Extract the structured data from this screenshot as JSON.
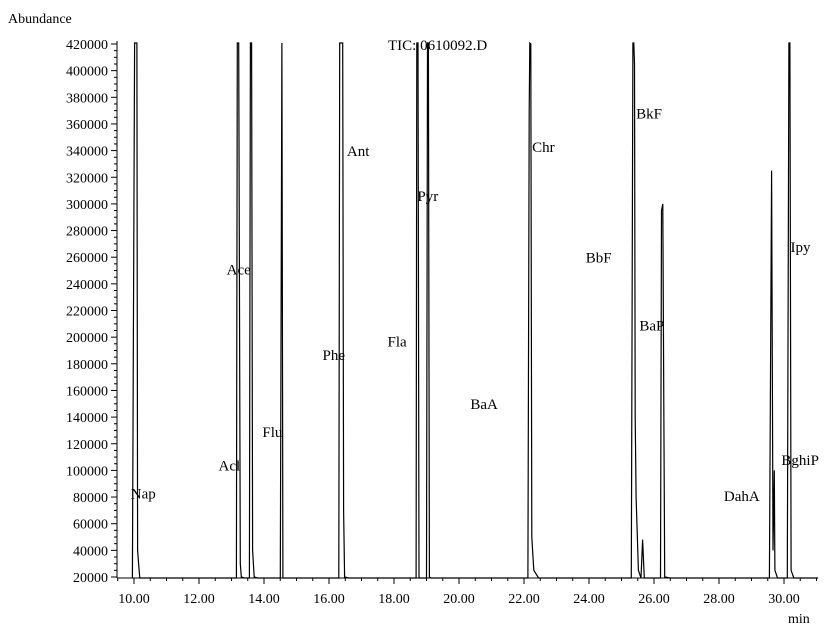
{
  "chart_data": {
    "type": "line",
    "title": "TIC: 0610092.D",
    "ylabel": "Abundance",
    "xlabel": "min",
    "xlim": [
      9.0,
      31.1
    ],
    "ylim": [
      6000,
      427000
    ],
    "x_ticks": [
      10.0,
      12.0,
      14.0,
      16.0,
      18.0,
      20.0,
      22.0,
      24.0,
      26.0,
      28.0,
      30.0
    ],
    "x_tick_labels": [
      "10.00",
      "12.00",
      "14.00",
      "16.00",
      "18.00",
      "20.00",
      "22.00",
      "24.00",
      "26.00",
      "28.00",
      "30.00"
    ],
    "y_ticks": [
      20000,
      40000,
      60000,
      80000,
      100000,
      120000,
      140000,
      160000,
      180000,
      200000,
      220000,
      240000,
      260000,
      280000,
      300000,
      320000,
      340000,
      360000,
      380000,
      400000,
      420000
    ],
    "y_tick_labels": [
      "20000",
      "40000",
      "60000",
      "80000",
      "100000",
      "120000",
      "140000",
      "160000",
      "180000",
      "200000",
      "220000",
      "240000",
      "260000",
      "280000",
      "300000",
      "320000",
      "340000",
      "360000",
      "380000",
      "400000",
      "420000"
    ],
    "grid": false,
    "series": [
      {
        "color": "#000000",
        "points": [
          [
            9.95,
            6000
          ],
          [
            10.02,
            430000
          ],
          [
            10.04,
            430000
          ],
          [
            10.07,
            430000
          ],
          [
            10.09,
            430000
          ],
          [
            10.11,
            40000
          ],
          [
            10.14,
            30000
          ],
          [
            10.18,
            8000
          ],
          [
            10.5,
            7000
          ],
          [
            11.5,
            7000
          ],
          [
            12.0,
            7000
          ],
          [
            12.1,
            8000
          ],
          [
            12.8,
            8000
          ],
          [
            13.0,
            8500
          ],
          [
            13.15,
            9000
          ],
          [
            13.18,
            430000
          ],
          [
            13.22,
            430000
          ],
          [
            13.27,
            30000
          ],
          [
            13.3,
            20000
          ],
          [
            13.4,
            15000
          ],
          [
            13.5,
            14000
          ],
          [
            13.55,
            15000
          ],
          [
            13.58,
            430000
          ],
          [
            13.62,
            430000
          ],
          [
            13.65,
            40000
          ],
          [
            13.7,
            20000
          ],
          [
            13.8,
            15000
          ],
          [
            14.0,
            13000
          ],
          [
            14.3,
            12000
          ],
          [
            14.45,
            11000
          ],
          [
            14.5,
            11000
          ],
          [
            14.55,
            430000
          ],
          [
            14.58,
            11000
          ],
          [
            14.8,
            10000
          ],
          [
            15.5,
            9500
          ],
          [
            16.2,
            9500
          ],
          [
            16.3,
            10000
          ],
          [
            16.33,
            430000
          ],
          [
            16.36,
            430000
          ],
          [
            16.39,
            430000
          ],
          [
            16.42,
            430000
          ],
          [
            16.45,
            70000
          ],
          [
            16.48,
            20000
          ],
          [
            16.6,
            12000
          ],
          [
            17.0,
            9000
          ],
          [
            17.5,
            9000
          ],
          [
            18.0,
            9000
          ],
          [
            18.5,
            9000
          ],
          [
            18.68,
            9500
          ],
          [
            18.7,
            430000
          ],
          [
            18.74,
            430000
          ],
          [
            18.77,
            15000
          ],
          [
            18.8,
            12000
          ],
          [
            18.95,
            12000
          ],
          [
            19.0,
            13000
          ],
          [
            19.03,
            430000
          ],
          [
            19.06,
            430000
          ],
          [
            19.09,
            20000
          ],
          [
            19.15,
            12000
          ],
          [
            19.5,
            9000
          ],
          [
            20.0,
            8500
          ],
          [
            20.5,
            8500
          ],
          [
            21.0,
            8500
          ],
          [
            21.1,
            14000
          ],
          [
            21.15,
            8500
          ],
          [
            21.5,
            8500
          ],
          [
            22.0,
            8500
          ],
          [
            22.12,
            9000
          ],
          [
            22.16,
            370000
          ],
          [
            22.18,
            430000
          ],
          [
            22.21,
            420000
          ],
          [
            22.24,
            50000
          ],
          [
            22.3,
            25000
          ],
          [
            22.45,
            15000
          ],
          [
            22.7,
            12000
          ],
          [
            22.8,
            12000
          ],
          [
            22.85,
            15000
          ],
          [
            22.9,
            11000
          ],
          [
            23.5,
            9500
          ],
          [
            24.0,
            9500
          ],
          [
            24.6,
            9500
          ],
          [
            25.0,
            9500
          ],
          [
            25.1,
            12000
          ],
          [
            25.2,
            11000
          ],
          [
            25.3,
            10000
          ],
          [
            25.35,
            430000
          ],
          [
            25.38,
            430000
          ],
          [
            25.4,
            405000
          ],
          [
            25.42,
            140000
          ],
          [
            25.45,
            80000
          ],
          [
            25.52,
            25000
          ],
          [
            25.6,
            15000
          ],
          [
            25.65,
            48000
          ],
          [
            25.7,
            14000
          ],
          [
            25.85,
            12000
          ],
          [
            26.0,
            11000
          ],
          [
            26.15,
            12000
          ],
          [
            26.2,
            15000
          ],
          [
            26.23,
            295000
          ],
          [
            26.27,
            300000
          ],
          [
            26.3,
            150000
          ],
          [
            26.33,
            20000
          ],
          [
            26.5,
            11000
          ],
          [
            27.0,
            10000
          ],
          [
            27.5,
            10000
          ],
          [
            28.0,
            10000
          ],
          [
            28.5,
            10000
          ],
          [
            29.0,
            10500
          ],
          [
            29.4,
            12000
          ],
          [
            29.55,
            18000
          ],
          [
            29.62,
            325000
          ],
          [
            29.66,
            40000
          ],
          [
            29.7,
            100000
          ],
          [
            29.72,
            25000
          ],
          [
            29.8,
            15000
          ],
          [
            30.0,
            13000
          ],
          [
            30.1,
            12000
          ],
          [
            30.15,
            430000
          ],
          [
            30.18,
            430000
          ],
          [
            30.22,
            25000
          ],
          [
            30.3,
            15000
          ],
          [
            30.5,
            12000
          ],
          [
            30.8,
            12000
          ],
          [
            31.05,
            12000
          ]
        ]
      }
    ],
    "annotations": [
      {
        "text": "Nap",
        "x": 9.9,
        "y": 79000
      },
      {
        "text": "Acl",
        "x": 12.6,
        "y": 100000
      },
      {
        "text": "Ace",
        "x": 12.85,
        "y": 247000
      },
      {
        "text": "Flu",
        "x": 13.95,
        "y": 125000
      },
      {
        "text": "Phe",
        "x": 15.8,
        "y": 183000
      },
      {
        "text": "Ant",
        "x": 16.55,
        "y": 336000
      },
      {
        "text": "Fla",
        "x": 17.8,
        "y": 193000
      },
      {
        "text": "Pyr",
        "x": 18.72,
        "y": 302000
      },
      {
        "text": "BaA",
        "x": 20.35,
        "y": 146000
      },
      {
        "text": "Chr",
        "x": 22.25,
        "y": 339000
      },
      {
        "text": "BbF",
        "x": 23.9,
        "y": 256000
      },
      {
        "text": "BkF",
        "x": 25.45,
        "y": 364000
      },
      {
        "text": "BaP",
        "x": 25.55,
        "y": 205000
      },
      {
        "text": "DahA",
        "x": 28.15,
        "y": 77000
      },
      {
        "text": "BghiP",
        "x": 29.92,
        "y": 104000
      },
      {
        "text": "Ipy",
        "x": 30.2,
        "y": 264000
      }
    ]
  }
}
